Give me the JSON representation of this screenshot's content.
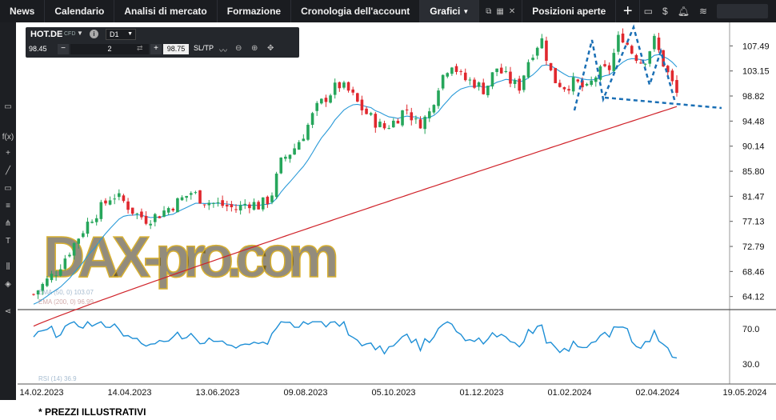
{
  "nav": {
    "items": [
      "News",
      "Calendario",
      "Analisi di mercato",
      "Formazione",
      "Cronologia dell'account"
    ],
    "active_tab": "Grafici",
    "positions": "Posizioni aperte",
    "add": "+"
  },
  "instrument": {
    "symbol": "HOT.DE",
    "type": "CFD",
    "timeframe": "D1",
    "sell_price": "98.45",
    "quantity": "2",
    "buy_price": "98.75",
    "sltp": "SL/TP"
  },
  "price_axis": [
    "107.49",
    "103.15",
    "98.82",
    "94.48",
    "90.14",
    "85.80",
    "81.47",
    "77.13",
    "72.79",
    "68.46",
    "64.12"
  ],
  "rsi_axis": [
    "70.0",
    "30.0"
  ],
  "date_axis": [
    "14.02.2023",
    "14.04.2023",
    "13.06.2023",
    "09.08.2023",
    "05.10.2023",
    "01.12.2023",
    "01.02.2024",
    "02.04.2024",
    "19.05.2024"
  ],
  "legend": {
    "ema50": "EMA (50, 0) 103.07",
    "ema200": "EMA (200, 0) 96.99",
    "rsi": "RSI (14) 36.9"
  },
  "watermark": "DAX-pro.com",
  "footnote": "* PREZZI ILLUSTRATIVI",
  "colors": {
    "up": "#26a65b",
    "down": "#e0282e",
    "ema50": "#2a9ad8",
    "ema200": "#d0232a",
    "rsi": "#1e8fd6",
    "pattern": "#1a6fb5"
  },
  "chart_data": {
    "type": "candlestick",
    "title": "",
    "ylim": [
      62,
      111
    ],
    "close_start": 64.5,
    "close_series": [
      64.5,
      66.5,
      68.5,
      71.5,
      74.5,
      77.5,
      79.5,
      81.8,
      80.5,
      78.5,
      77.5,
      78.2,
      79.5,
      80.8,
      82.2,
      80.8,
      80.2,
      79.8,
      79.2,
      80.5,
      79.8,
      81.2,
      87.8,
      89.5,
      92.5,
      96.5,
      98.8,
      100.8,
      99.5,
      96.8,
      94.8,
      93.2,
      94.5,
      96.8,
      93.8,
      95.5,
      101.5,
      104.8,
      101.8,
      101.2,
      99.8,
      103.8,
      101.8,
      100.2,
      105.8,
      108.8,
      101.8,
      100.5,
      101.2,
      99.8,
      102.8,
      103.5,
      109.8,
      106.5,
      104.5,
      108.5,
      103.5,
      99.2
    ],
    "ema200_end": 96.99,
    "ema50_end": 103.07,
    "rsi_end": 36.9,
    "rsi_levels": [
      70,
      30
    ]
  }
}
